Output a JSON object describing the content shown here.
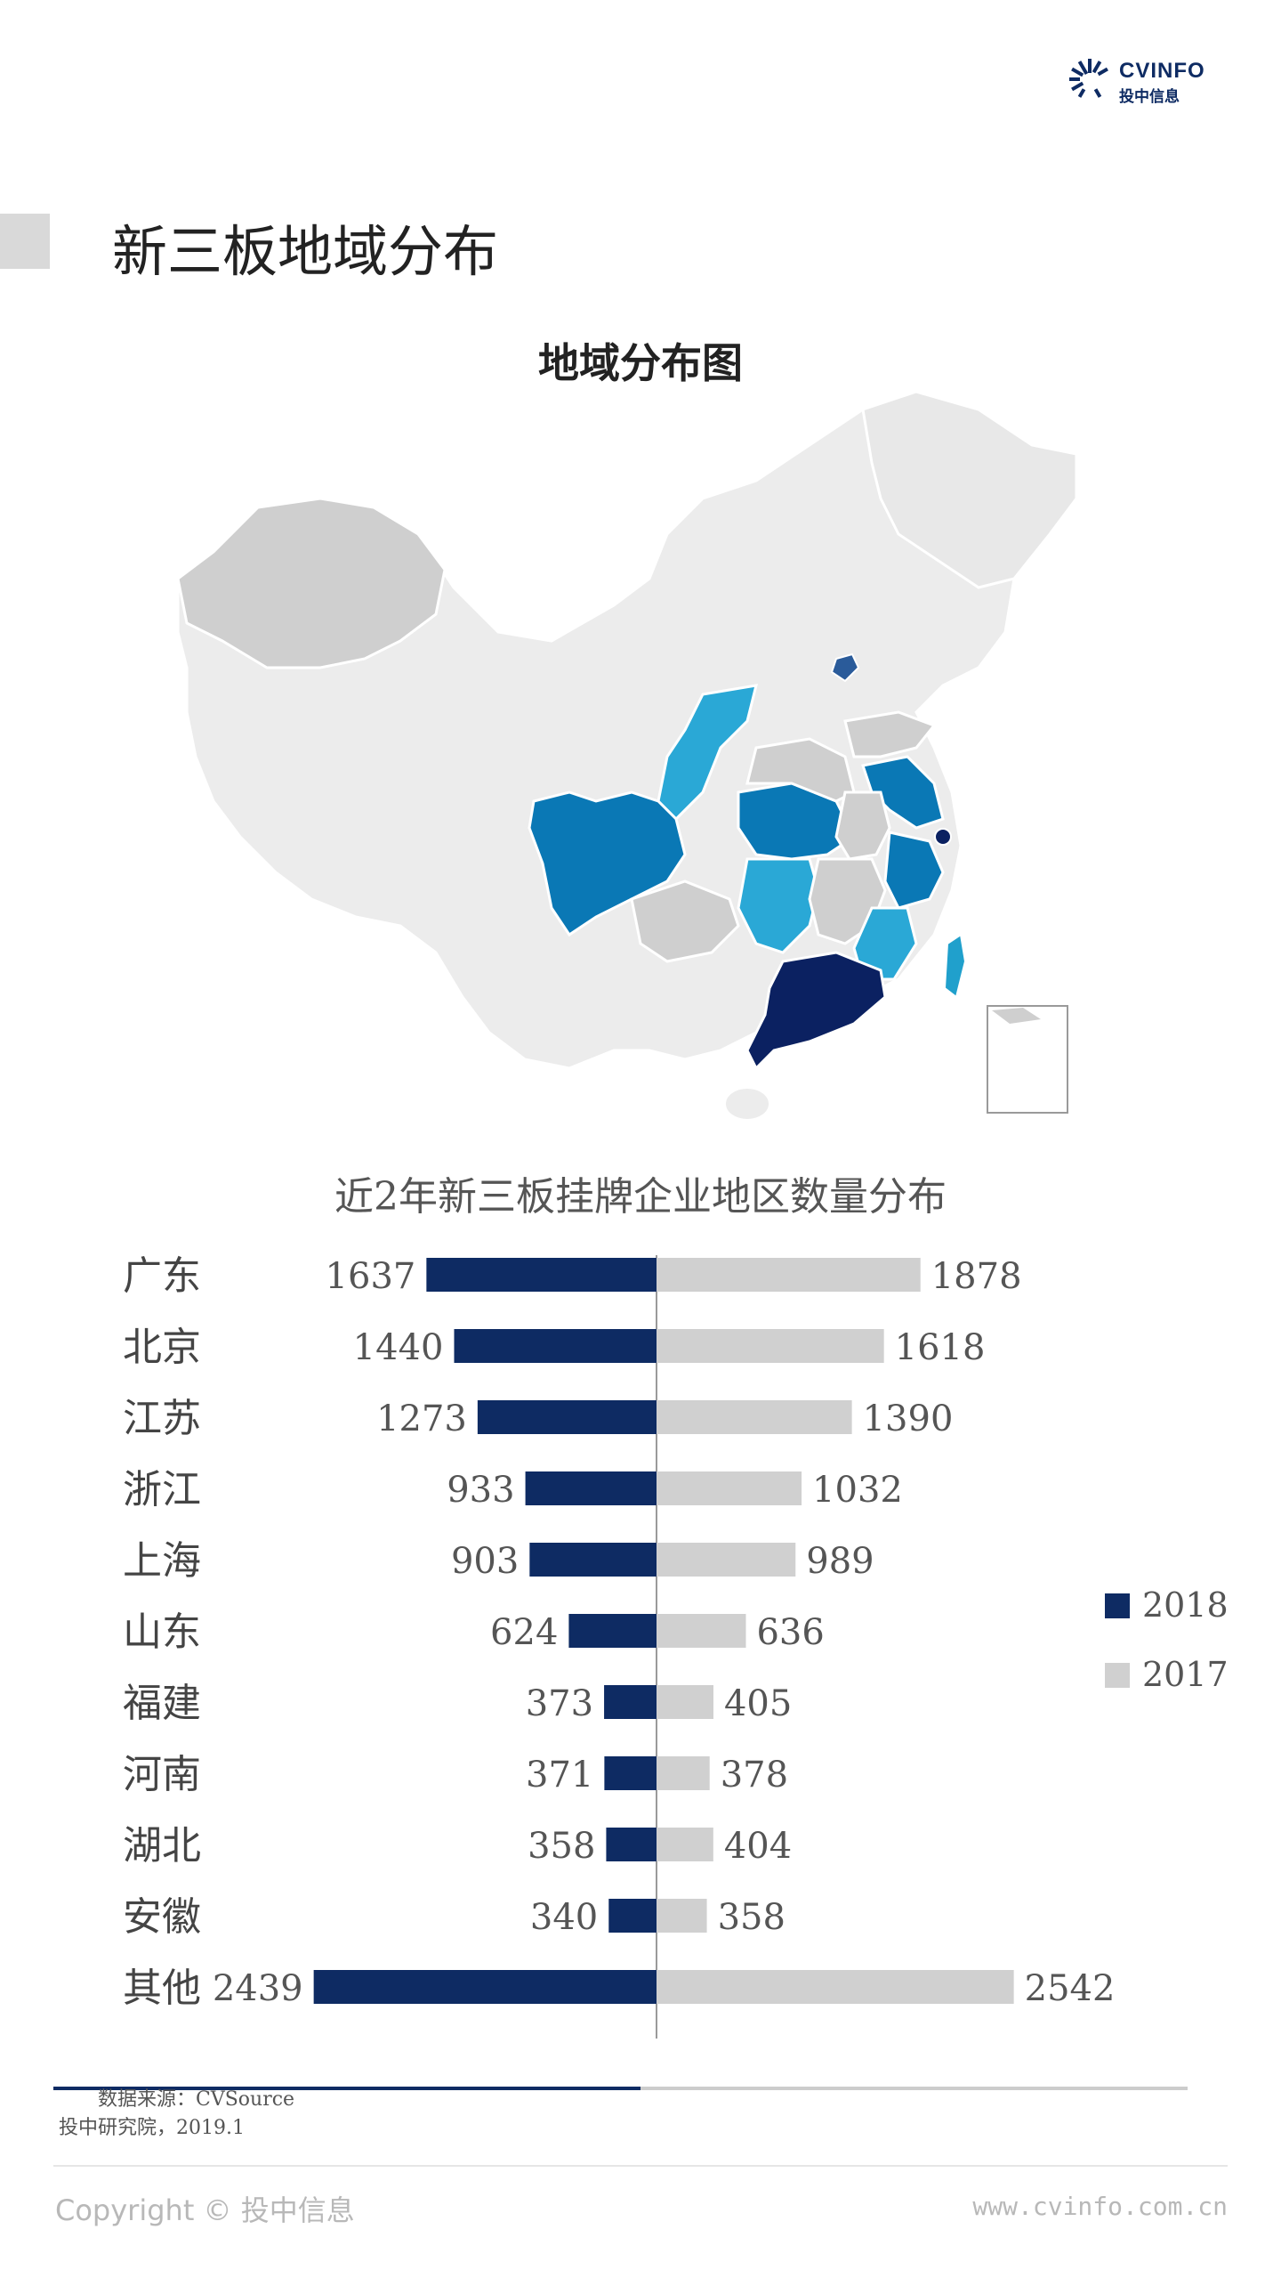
{
  "brand": {
    "name_en": "CVINFO",
    "name_cn": "投中信息"
  },
  "section_title": "新三板地域分布",
  "map_title": "地域分布图",
  "colors": {
    "dark_navy": "#0b2161",
    "mid_blue": "#0a78b5",
    "light_blue": "#2aa8d6",
    "sky": "#20a0cc",
    "grey_mid": "#cfcfcf",
    "grey_light": "#ececec",
    "bar_2018": "#0e2b63",
    "bar_2017": "#d0d0d0"
  },
  "chart_data": {
    "type": "bar",
    "title": "近2年新三板挂牌企业地区数量分布",
    "orientation": "horizontal-butterfly",
    "categories": [
      "广东",
      "北京",
      "江苏",
      "浙江",
      "上海",
      "山东",
      "福建",
      "河南",
      "湖北",
      "安徽",
      "其他"
    ],
    "series": [
      {
        "name": "2018",
        "values": [
          1637,
          1440,
          1273,
          933,
          903,
          624,
          373,
          371,
          358,
          340,
          2439
        ],
        "color": "#0e2b63",
        "side": "left"
      },
      {
        "name": "2017",
        "values": [
          1878,
          1618,
          1390,
          1032,
          989,
          636,
          405,
          378,
          404,
          358,
          2542
        ],
        "color": "#d0d0d0",
        "side": "right"
      }
    ],
    "legend": "right"
  },
  "source_line1": "数据来源：CVSource",
  "source_line2": "投中研究院，2019.1",
  "footer": {
    "copyright": "Copyright © 投中信息",
    "website": "www.cvinfo.com.cn"
  }
}
